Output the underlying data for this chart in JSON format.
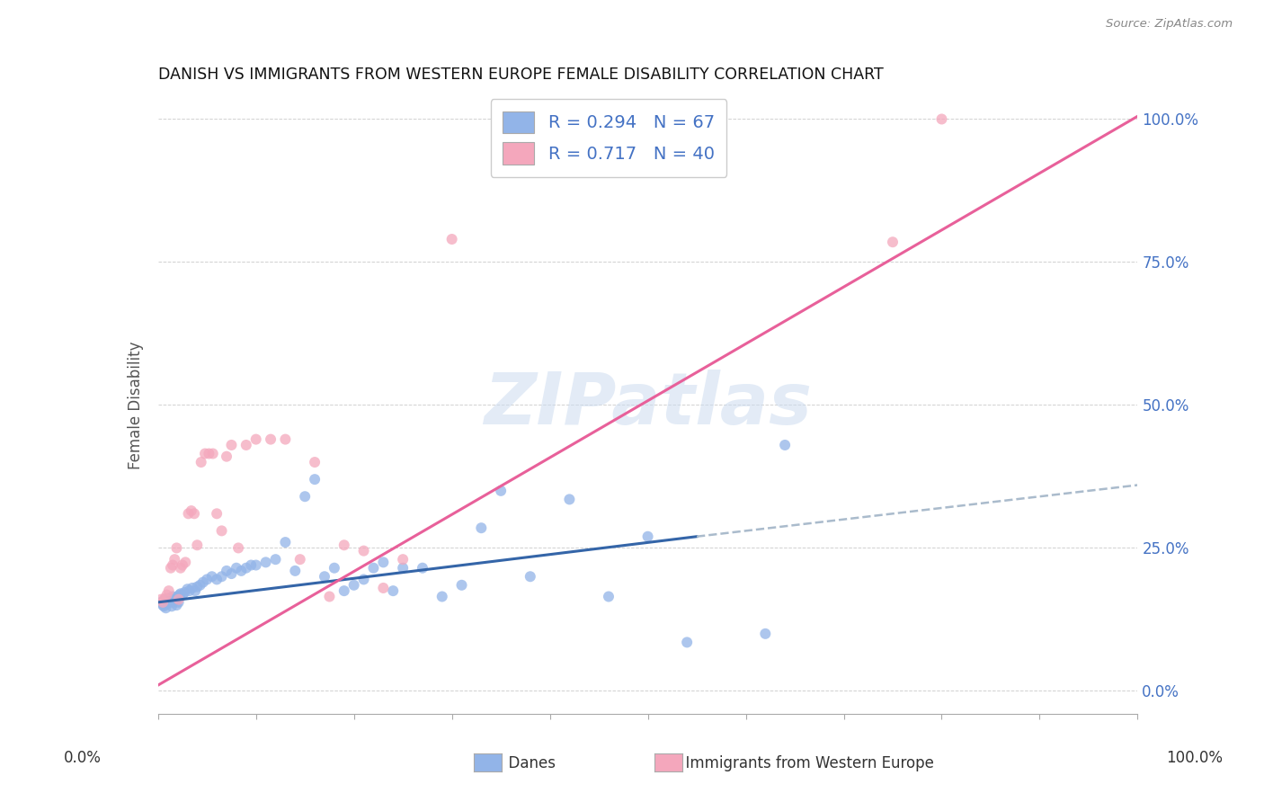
{
  "title": "DANISH VS IMMIGRANTS FROM WESTERN EUROPE FEMALE DISABILITY CORRELATION CHART",
  "source": "Source: ZipAtlas.com",
  "ylabel": "Female Disability",
  "ytick_labels": [
    "0.0%",
    "25.0%",
    "50.0%",
    "75.0%",
    "100.0%"
  ],
  "ytick_values": [
    0.0,
    0.25,
    0.5,
    0.75,
    1.0
  ],
  "xlim": [
    0.0,
    1.0
  ],
  "ylim": [
    -0.04,
    1.04
  ],
  "danes_R": 0.294,
  "danes_N": 67,
  "immigrants_R": 0.717,
  "immigrants_N": 40,
  "danes_color": "#92b4e8",
  "danes_line_color": "#3465a8",
  "immigrants_color": "#f4a7bc",
  "immigrants_line_color": "#e8609a",
  "dashed_line_color": "#aabbcc",
  "background_color": "#ffffff",
  "grid_color": "#cccccc",
  "watermark_color": "#ccdcf0",
  "danes_x": [
    0.003,
    0.005,
    0.006,
    0.007,
    0.008,
    0.009,
    0.01,
    0.011,
    0.012,
    0.013,
    0.014,
    0.015,
    0.016,
    0.017,
    0.018,
    0.019,
    0.02,
    0.021,
    0.022,
    0.023,
    0.025,
    0.027,
    0.03,
    0.032,
    0.035,
    0.038,
    0.04,
    0.043,
    0.046,
    0.05,
    0.055,
    0.06,
    0.065,
    0.07,
    0.075,
    0.08,
    0.085,
    0.09,
    0.095,
    0.1,
    0.11,
    0.12,
    0.13,
    0.14,
    0.15,
    0.16,
    0.17,
    0.18,
    0.19,
    0.2,
    0.21,
    0.22,
    0.23,
    0.24,
    0.25,
    0.27,
    0.29,
    0.31,
    0.33,
    0.35,
    0.38,
    0.42,
    0.46,
    0.5,
    0.54,
    0.62,
    0.64
  ],
  "danes_y": [
    0.155,
    0.15,
    0.148,
    0.16,
    0.145,
    0.152,
    0.158,
    0.162,
    0.155,
    0.16,
    0.148,
    0.165,
    0.155,
    0.158,
    0.162,
    0.15,
    0.165,
    0.155,
    0.168,
    0.17,
    0.168,
    0.172,
    0.178,
    0.175,
    0.18,
    0.175,
    0.182,
    0.185,
    0.19,
    0.195,
    0.2,
    0.195,
    0.2,
    0.21,
    0.205,
    0.215,
    0.21,
    0.215,
    0.22,
    0.22,
    0.225,
    0.23,
    0.26,
    0.21,
    0.34,
    0.37,
    0.2,
    0.215,
    0.175,
    0.185,
    0.195,
    0.215,
    0.225,
    0.175,
    0.215,
    0.215,
    0.165,
    0.185,
    0.285,
    0.35,
    0.2,
    0.335,
    0.165,
    0.27,
    0.085,
    0.1,
    0.43
  ],
  "immigrants_x": [
    0.003,
    0.005,
    0.007,
    0.009,
    0.011,
    0.013,
    0.015,
    0.017,
    0.019,
    0.021,
    0.023,
    0.025,
    0.028,
    0.031,
    0.034,
    0.037,
    0.04,
    0.044,
    0.048,
    0.052,
    0.056,
    0.06,
    0.065,
    0.07,
    0.075,
    0.082,
    0.09,
    0.1,
    0.115,
    0.13,
    0.145,
    0.16,
    0.175,
    0.19,
    0.21,
    0.23,
    0.25,
    0.3,
    0.75,
    0.8
  ],
  "immigrants_y": [
    0.16,
    0.155,
    0.162,
    0.168,
    0.175,
    0.215,
    0.22,
    0.23,
    0.25,
    0.16,
    0.215,
    0.22,
    0.225,
    0.31,
    0.315,
    0.31,
    0.255,
    0.4,
    0.415,
    0.415,
    0.415,
    0.31,
    0.28,
    0.41,
    0.43,
    0.25,
    0.43,
    0.44,
    0.44,
    0.44,
    0.23,
    0.4,
    0.165,
    0.255,
    0.245,
    0.18,
    0.23,
    0.79,
    0.785,
    1.0
  ],
  "danes_line_x0": 0.0,
  "danes_line_x1": 0.55,
  "danes_line_y0": 0.155,
  "danes_line_y1": 0.27,
  "dashed_line_x0": 0.55,
  "dashed_line_x1": 1.0,
  "dashed_line_y0": 0.27,
  "dashed_line_y1": 0.36,
  "immigrants_line_x0": 0.0,
  "immigrants_line_x1": 1.0,
  "immigrants_line_y0": 0.01,
  "immigrants_line_y1": 1.005
}
